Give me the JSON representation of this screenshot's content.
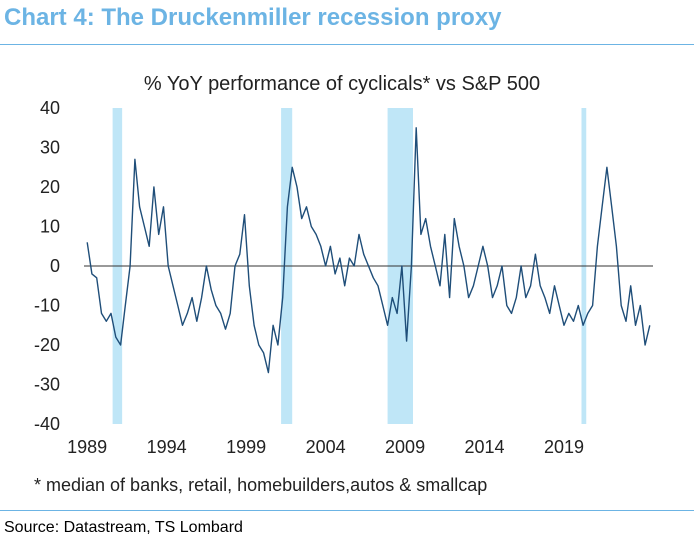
{
  "header": {
    "title": "Chart 4: The Druckenmiller recession proxy",
    "source": "Source: Datastream, TS Lombard"
  },
  "colors": {
    "accent": "#6cb4e4",
    "series": "#1f4e79",
    "recession": "#bfe6f7"
  },
  "chart_data": {
    "type": "line",
    "subtitle": "% YoY performance of cyclicals* vs S&P 500",
    "footnote": "* median of banks, retail, homebuilders,autos & smallcap",
    "ylim": [
      -40,
      40
    ],
    "xlim": [
      1988.8,
      2024.6
    ],
    "yticks": [
      "40",
      "30",
      "20",
      "10",
      "0",
      "-10",
      "-20",
      "-30",
      "-40"
    ],
    "xticks": [
      "1989",
      "1994",
      "1999",
      "2004",
      "2009",
      "2014",
      "2019"
    ],
    "recessions": [
      [
        1990.6,
        1991.2
      ],
      [
        2001.2,
        2001.9
      ],
      [
        2007.9,
        2009.5
      ],
      [
        2020.1,
        2020.4
      ]
    ],
    "series": [
      {
        "x": [
          1989.0,
          1989.3,
          1989.6,
          1989.9,
          1990.2,
          1990.5,
          1990.8,
          1991.1,
          1991.4,
          1991.7,
          1992.0,
          1992.3,
          1992.6,
          1992.9,
          1993.2,
          1993.5,
          1993.8,
          1994.1,
          1994.4,
          1994.7,
          1995.0,
          1995.3,
          1995.6,
          1995.9,
          1996.2,
          1996.5,
          1996.8,
          1997.1,
          1997.4,
          1997.7,
          1998.0,
          1998.3,
          1998.6,
          1998.9,
          1999.2,
          1999.5,
          1999.8,
          2000.1,
          2000.4,
          2000.7,
          2001.0,
          2001.3,
          2001.6,
          2001.9,
          2002.2,
          2002.5,
          2002.8,
          2003.1,
          2003.4,
          2003.7,
          2004.0,
          2004.3,
          2004.6,
          2004.9,
          2005.2,
          2005.5,
          2005.8,
          2006.1,
          2006.4,
          2006.7,
          2007.0,
          2007.3,
          2007.6,
          2007.9,
          2008.2,
          2008.5,
          2008.8,
          2009.1,
          2009.4,
          2009.7,
          2010.0,
          2010.3,
          2010.6,
          2010.9,
          2011.2,
          2011.5,
          2011.8,
          2012.1,
          2012.4,
          2012.7,
          2013.0,
          2013.3,
          2013.6,
          2013.9,
          2014.2,
          2014.5,
          2014.8,
          2015.1,
          2015.4,
          2015.7,
          2016.0,
          2016.3,
          2016.6,
          2016.9,
          2017.2,
          2017.5,
          2017.8,
          2018.1,
          2018.4,
          2018.7,
          2019.0,
          2019.3,
          2019.6,
          2019.9,
          2020.2,
          2020.5,
          2020.8,
          2021.1,
          2021.4,
          2021.7,
          2022.0,
          2022.3,
          2022.6,
          2022.9,
          2023.2,
          2023.5,
          2023.8,
          2024.1,
          2024.4
        ],
        "y": [
          6,
          -2,
          -3,
          -12,
          -14,
          -12,
          -18,
          -20,
          -10,
          0,
          27,
          15,
          10,
          5,
          20,
          8,
          15,
          0,
          -5,
          -10,
          -15,
          -12,
          -8,
          -14,
          -8,
          0,
          -6,
          -10,
          -12,
          -16,
          -12,
          0,
          3,
          13,
          -5,
          -15,
          -20,
          -22,
          -27,
          -15,
          -20,
          -8,
          15,
          25,
          20,
          12,
          15,
          10,
          8,
          5,
          0,
          5,
          -2,
          2,
          -5,
          2,
          0,
          8,
          3,
          0,
          -3,
          -5,
          -10,
          -15,
          -8,
          -12,
          0,
          -19,
          0,
          35,
          8,
          12,
          5,
          0,
          -5,
          8,
          -8,
          12,
          5,
          0,
          -8,
          -5,
          0,
          5,
          0,
          -8,
          -5,
          0,
          -10,
          -12,
          -8,
          0,
          -8,
          -5,
          3,
          -5,
          -8,
          -12,
          -5,
          -10,
          -15,
          -12,
          -14,
          -10,
          -15,
          -12,
          -10,
          5,
          15,
          25,
          15,
          5,
          -10,
          -14,
          -5,
          -15,
          -10,
          -20,
          -15
        ]
      }
    ]
  }
}
